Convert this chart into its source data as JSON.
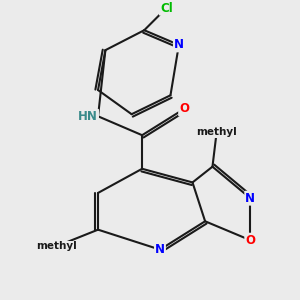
{
  "background_color": "#ebebeb",
  "bond_color": "#1a1a1a",
  "atom_colors": {
    "N": "#0000ff",
    "O": "#ff0000",
    "Cl": "#00bb00",
    "HN": "#3a8a8a",
    "C": "#1a1a1a"
  },
  "fs": 8.5,
  "fsm": 7.5,
  "lw": 1.5
}
